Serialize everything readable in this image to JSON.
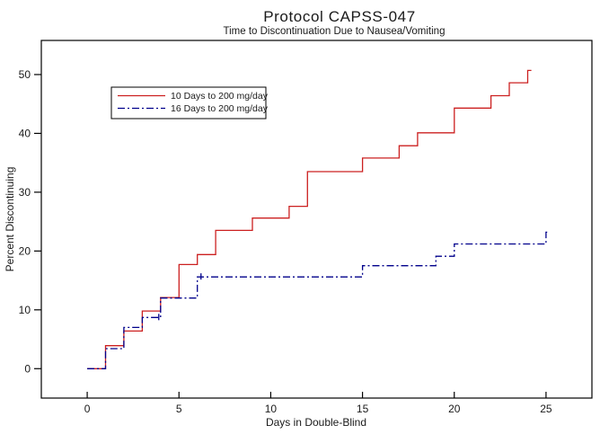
{
  "chart_data": {
    "type": "line",
    "subtype": "kaplan-meier-step",
    "title": "Protocol CAPSS-047",
    "subtitle": "Time to Discontinuation Due to Nausea/Vomiting",
    "xlabel": "Days in Double-Blind",
    "ylabel": "Percent Discontinuing",
    "xlim": [
      -2.5,
      27.5
    ],
    "ylim": [
      -5,
      55.8
    ],
    "x_ticks": [
      0,
      5,
      10,
      15,
      20,
      25
    ],
    "y_ticks": [
      0,
      10,
      20,
      30,
      40,
      50
    ],
    "grid": false,
    "legend_position": "upper-left-inside",
    "series": [
      {
        "name": "10 Days to 200 mg/day",
        "color": "#cc2020",
        "line_style": "solid",
        "points": [
          [
            0,
            0
          ],
          [
            1,
            3.9
          ],
          [
            2,
            6.4
          ],
          [
            3,
            9.8
          ],
          [
            4,
            12.1
          ],
          [
            5,
            17.7
          ],
          [
            6,
            19.4
          ],
          [
            7,
            23.5
          ],
          [
            9,
            25.6
          ],
          [
            11,
            27.6
          ],
          [
            12,
            33.5
          ],
          [
            15,
            35.8
          ],
          [
            17,
            37.9
          ],
          [
            18,
            40.1
          ],
          [
            20,
            44.3
          ],
          [
            22,
            46.4
          ],
          [
            23,
            48.6
          ],
          [
            24,
            50.7
          ]
        ],
        "end_day": 24.2,
        "censor_marks": []
      },
      {
        "name": "16 Days to 200 mg/day",
        "color": "#00008b",
        "line_style": "dash-dot",
        "points": [
          [
            0,
            0
          ],
          [
            1,
            3.4
          ],
          [
            2,
            7.0
          ],
          [
            3,
            8.7
          ],
          [
            4,
            12.0
          ],
          [
            6,
            15.6
          ],
          [
            15,
            17.5
          ],
          [
            19,
            19.1
          ],
          [
            20,
            21.2
          ],
          [
            25,
            23.2
          ]
        ],
        "end_day": 25.2,
        "censor_marks": [
          [
            3.9,
            8.7
          ],
          [
            6.2,
            15.6
          ]
        ]
      }
    ]
  }
}
